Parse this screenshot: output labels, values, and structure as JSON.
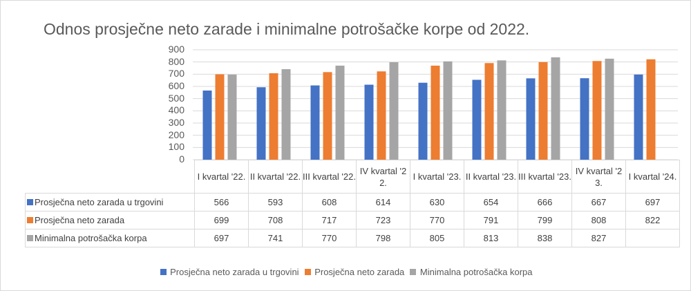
{
  "chart_data": {
    "type": "bar",
    "title": "Odnos prosječne neto zarade i minimalne potrošačke korpe od 2022.",
    "categories": [
      "I kvartal '22.",
      "II kvartal '22.",
      "III kvartal '22.",
      "IV kvartal '22.",
      "I kvartal '23.",
      "II kvartal '23.",
      "III kvartal '23.",
      "IV kvartal '23.",
      "I kvartal '24."
    ],
    "series": [
      {
        "name": "Prosječna neto zarada u trgovini",
        "color": "#4472c4",
        "values": [
          566,
          593,
          608,
          614,
          630,
          654,
          666,
          667,
          697
        ]
      },
      {
        "name": "Prosječna neto zarada",
        "color": "#ed7d31",
        "values": [
          699,
          708,
          717,
          723,
          770,
          791,
          799,
          808,
          822
        ]
      },
      {
        "name": "Minimalna potrošačka korpa",
        "color": "#a5a5a5",
        "values": [
          697,
          741,
          770,
          798,
          805,
          813,
          838,
          827,
          null
        ]
      }
    ],
    "yticks": [
      0,
      100,
      200,
      300,
      400,
      500,
      600,
      700,
      800,
      900
    ],
    "ylim": [
      0,
      900
    ],
    "grid": true,
    "legend": "bottom",
    "data_table": true
  }
}
